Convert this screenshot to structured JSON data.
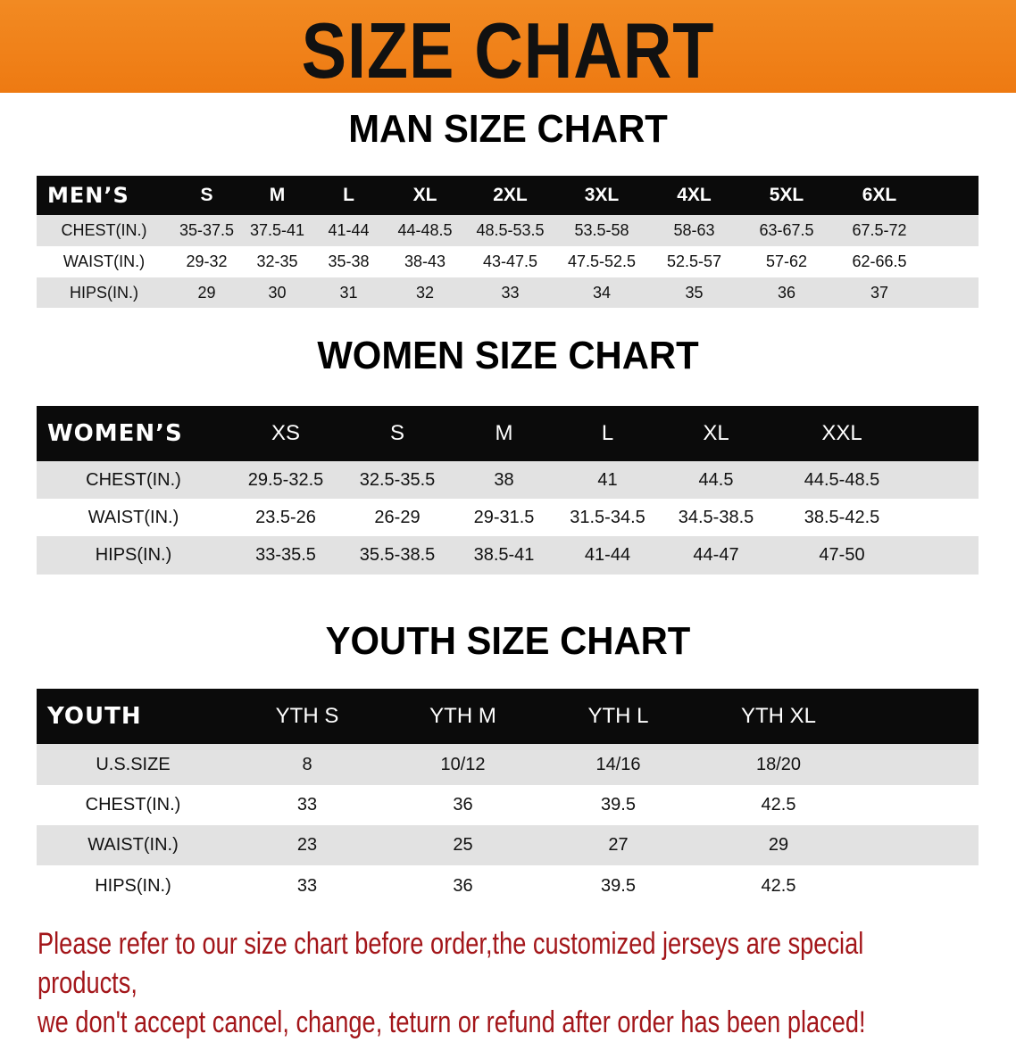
{
  "banner_title": "SIZE CHART",
  "colors": {
    "banner": "#ef7f18",
    "header_row": "#0b0b0b",
    "notice_text": "#a3161a"
  },
  "men": {
    "title": "MAN SIZE CHART",
    "header": [
      "MEN’S",
      "S",
      "M",
      "L",
      "XL",
      "2XL",
      "3XL",
      "4XL",
      "5XL",
      "6XL"
    ],
    "rows": [
      [
        "CHEST(IN.)",
        "35-37.5",
        "37.5-41",
        "41-44",
        "44-48.5",
        "48.5-53.5",
        "53.5-58",
        "58-63",
        "63-67.5",
        "67.5-72"
      ],
      [
        "WAIST(IN.)",
        "29-32",
        "32-35",
        "35-38",
        "38-43",
        "43-47.5",
        "47.5-52.5",
        "52.5-57",
        "57-62",
        "62-66.5"
      ],
      [
        "HIPS(IN.)",
        "29",
        "30",
        "31",
        "32",
        "33",
        "34",
        "35",
        "36",
        "37"
      ]
    ]
  },
  "women": {
    "title": "WOMEN SIZE CHART",
    "header": [
      "WOMEN’S",
      "XS",
      "S",
      "M",
      "L",
      "XL",
      "XXL"
    ],
    "rows": [
      [
        "CHEST(IN.)",
        "29.5-32.5",
        "32.5-35.5",
        "38",
        "41",
        "44.5",
        "44.5-48.5"
      ],
      [
        "WAIST(IN.)",
        "23.5-26",
        "26-29",
        "29-31.5",
        "31.5-34.5",
        "34.5-38.5",
        "38.5-42.5"
      ],
      [
        "HIPS(IN.)",
        "33-35.5",
        "35.5-38.5",
        "38.5-41",
        "41-44",
        "44-47",
        "47-50"
      ]
    ]
  },
  "youth": {
    "title": "YOUTH SIZE CHART",
    "header": [
      "YOUTH",
      "YTH S",
      "YTH M",
      "YTH L",
      "YTH XL"
    ],
    "rows": [
      [
        "U.S.SIZE",
        "8",
        "10/12",
        "14/16",
        "18/20"
      ],
      [
        "CHEST(IN.)",
        "33",
        "36",
        "39.5",
        "42.5"
      ],
      [
        "WAIST(IN.)",
        "23",
        "25",
        "27",
        "29"
      ],
      [
        "HIPS(IN.)",
        "33",
        "36",
        "39.5",
        "42.5"
      ]
    ]
  },
  "notice": {
    "line1": "Please refer to our size chart before order,the customized jerseys are special products,",
    "line2": "we don't accept cancel, change, teturn or refund after order has been placed!"
  }
}
